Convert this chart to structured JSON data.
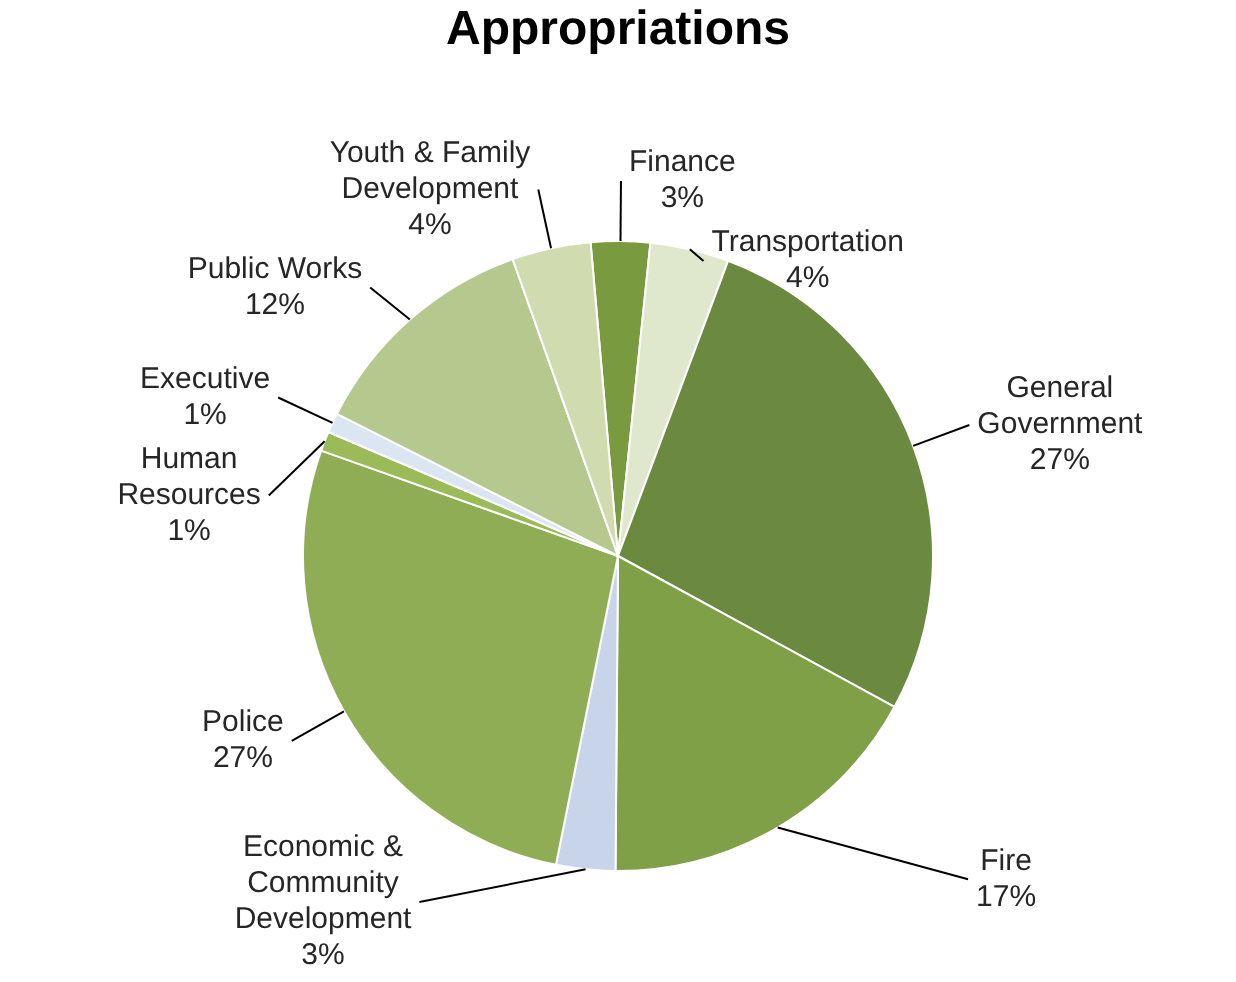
{
  "chart_data": {
    "type": "pie",
    "title": "Appropriations",
    "categories": [
      "Finance",
      "Transportation",
      "General Government",
      "Fire",
      "Economic & Community Development",
      "Police",
      "Human Resources",
      "Executive",
      "Public Works",
      "Youth & Family Development"
    ],
    "values": [
      3,
      4,
      27,
      17,
      3,
      27,
      1,
      1,
      12,
      4
    ],
    "value_labels": [
      "3%",
      "4%",
      "27%",
      "17%",
      "3%",
      "27%",
      "1%",
      "1%",
      "12%",
      "4%"
    ],
    "colors": [
      "#7a9a40",
      "#dfe8cc",
      "#6b8a3f",
      "#7fa046",
      "#c8d4ea",
      "#8fad55",
      "#9bbb59",
      "#dce6f2",
      "#b5c98e",
      "#d0dcb0"
    ],
    "legend": false
  }
}
